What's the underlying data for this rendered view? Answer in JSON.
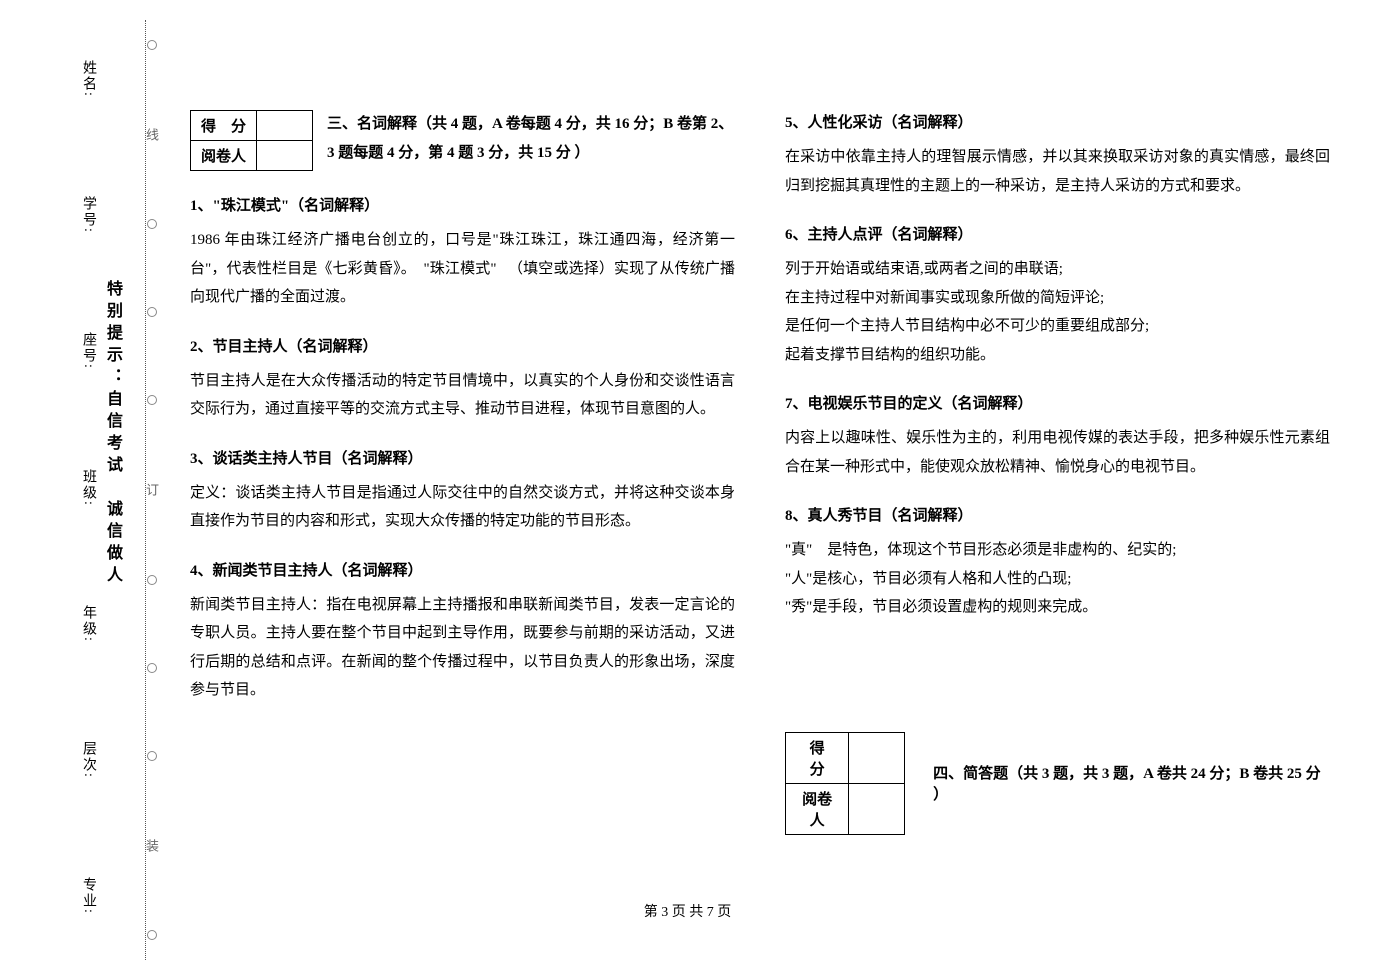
{
  "binding": {
    "reminder": "特别提示：自信考试　诚信做人",
    "labels": [
      "姓名:",
      "学号:",
      "座号:",
      "班级:",
      "年级:",
      "层次:",
      "专业:"
    ],
    "fold_tags": [
      "线",
      "订",
      "装"
    ]
  },
  "section3": {
    "score_labels": {
      "row1": "得　分",
      "row2": "阅卷人"
    },
    "title": "三、名词解释（共 4 题，A 卷每题 4 分，共 16 分；B 卷第 2、3 题每题 4 分，第 4 题 3 分，共 15 分 ）"
  },
  "questions_left": [
    {
      "title": "1、\"珠江模式\"（名词解释）",
      "body": "1986 年由珠江经济广播电台创立的，口号是\"珠江珠江，珠江通四海，经济第一台\"，代表性栏目是《七彩黄昏》。　\"珠江模式\" 　（填空或选择）实现了从传统广播向现代广播的全面过渡。"
    },
    {
      "title": "2、节目主持人（名词解释）",
      "body": "节目主持人是在大众传播活动的特定节目情境中，以真实的个人身份和交谈性语言交际行为，通过直接平等的交流方式主导、推动节目进程，体现节目意图的人。"
    },
    {
      "title": "3、谈话类主持人节目（名词解释）",
      "body": "定义：谈话类主持人节目是指通过人际交往中的自然交谈方式，并将这种交谈本身直接作为节目的内容和形式，实现大众传播的特定功能的节目形态。"
    },
    {
      "title": "4、新闻类节目主持人（名词解释）",
      "body": "新闻类节目主持人：指在电视屏幕上主持播报和串联新闻类节目，发表一定言论的专职人员。主持人要在整个节目中起到主导作用，既要参与前期的采访活动，又进行后期的总结和点评。在新闻的整个传播过程中，以节目负责人的形象出场，深度参与节目。"
    }
  ],
  "questions_right": [
    {
      "title": "5、人性化采访（名词解释）",
      "body": "在采访中依靠主持人的理智展示情感，并以其来换取采访对象的真实情感，最终回归到挖掘其真理性的主题上的一种采访，是主持人采访的方式和要求。"
    },
    {
      "title": "6、主持人点评（名词解释）",
      "body": "列于开始语或结束语,或两者之间的串联语;\n在主持过程中对新闻事实或现象所做的简短评论;\n是任何一个主持人节目结构中必不可少的重要组成部分;\n起着支撑节目结构的组织功能。"
    },
    {
      "title": "7、电视娱乐节目的定义（名词解释）",
      "body": "内容上以趣味性、娱乐性为主的，利用电视传媒的表达手段，把多种娱乐性元素组合在某一种形式中，能使观众放松精神、愉悦身心的电视节目。"
    },
    {
      "title": "8、真人秀节目（名词解释）",
      "body": "\"真\"　是特色，体现这个节目形态必须是非虚构的、纪实的;\n\"人\"是核心，节目必须有人格和人性的凸现;\n\"秀\"是手段，节目必须设置虚构的规则来完成。"
    }
  ],
  "section4": {
    "score_labels": {
      "row1": "得　分",
      "row2": "阅卷人"
    },
    "title": "四、简答题（共 3 题，共 3 题，A 卷共 24 分；B 卷共 25 分 ）"
  },
  "footer": "第 3 页 共 7 页",
  "colors": {
    "text": "#000000",
    "background": "#ffffff",
    "dotted": "#555555"
  }
}
